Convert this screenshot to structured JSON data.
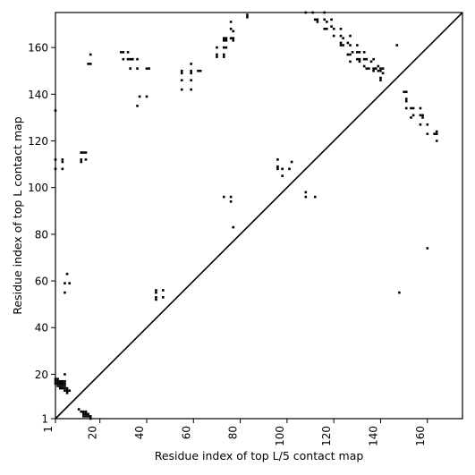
{
  "chart_data": {
    "type": "scatter",
    "title": "",
    "xlabel": "Residue index of top L/5 contact map",
    "ylabel": "Residue index of top L contact map",
    "xlim": [
      1,
      175
    ],
    "ylim": [
      1,
      175
    ],
    "x_ticks": [
      1,
      20,
      40,
      60,
      80,
      100,
      120,
      140,
      160
    ],
    "y_ticks": [
      1,
      20,
      40,
      60,
      80,
      100,
      120,
      140,
      160
    ],
    "x_tick_labels": [
      "1",
      "20",
      "40",
      "60",
      "80",
      "100",
      "120",
      "140",
      "160"
    ],
    "y_tick_labels": [
      "1",
      "20",
      "40",
      "60",
      "80",
      "100",
      "120",
      "140",
      "160"
    ],
    "tick_label_rotation_x": 270,
    "grid": false,
    "legend": "none",
    "diagonal_line": true,
    "marker": "square",
    "marker_color": "#000000",
    "series": [
      {
        "values": [
          [
            1,
            133
          ],
          [
            1,
            112
          ],
          [
            1,
            108
          ],
          [
            4,
            112
          ],
          [
            4,
            111
          ],
          [
            4,
            108
          ],
          [
            5,
            59
          ],
          [
            6,
            63
          ],
          [
            5,
            55
          ],
          [
            7,
            59
          ],
          [
            12,
            115
          ],
          [
            13,
            115
          ],
          [
            14,
            115
          ],
          [
            12,
            111
          ],
          [
            12,
            112
          ],
          [
            14,
            112
          ],
          [
            15,
            153
          ],
          [
            16,
            153
          ],
          [
            16,
            157
          ],
          [
            29,
            158
          ],
          [
            30,
            158
          ],
          [
            30,
            155
          ],
          [
            32,
            158
          ],
          [
            32,
            155
          ],
          [
            33,
            155
          ],
          [
            34,
            155
          ],
          [
            33,
            151
          ],
          [
            36,
            155
          ],
          [
            36,
            151
          ],
          [
            37,
            139
          ],
          [
            36,
            135
          ],
          [
            40,
            139
          ],
          [
            40,
            151
          ],
          [
            41,
            151
          ],
          [
            44,
            56
          ],
          [
            44,
            55
          ],
          [
            44,
            53
          ],
          [
            44,
            52
          ],
          [
            47,
            56
          ],
          [
            47,
            53
          ],
          [
            55,
            150
          ],
          [
            55,
            149
          ],
          [
            55,
            146
          ],
          [
            55,
            142
          ],
          [
            59,
            153
          ],
          [
            59,
            150
          ],
          [
            59,
            149
          ],
          [
            59,
            146
          ],
          [
            59,
            142
          ],
          [
            62,
            150
          ],
          [
            63,
            150
          ],
          [
            70,
            160
          ],
          [
            70,
            157
          ],
          [
            70,
            156
          ],
          [
            73,
            164
          ],
          [
            73,
            163
          ],
          [
            73,
            160
          ],
          [
            73,
            157
          ],
          [
            73,
            156
          ],
          [
            74,
            164
          ],
          [
            74,
            163
          ],
          [
            74,
            160
          ],
          [
            76,
            171
          ],
          [
            76,
            168
          ],
          [
            77,
            167
          ],
          [
            76,
            164
          ],
          [
            77,
            164
          ],
          [
            77,
            163
          ],
          [
            73,
            96
          ],
          [
            76,
            96
          ],
          [
            76,
            94
          ],
          [
            77,
            83
          ],
          [
            83,
            174
          ],
          [
            83,
            173
          ],
          [
            96,
            112
          ],
          [
            96,
            109
          ],
          [
            96,
            108
          ],
          [
            98,
            108
          ],
          [
            98,
            105
          ],
          [
            101,
            108
          ],
          [
            102,
            111
          ],
          [
            108,
            175
          ],
          [
            108,
            98
          ],
          [
            108,
            96
          ],
          [
            111,
            175
          ],
          [
            112,
            96
          ],
          [
            112,
            172
          ],
          [
            113,
            171
          ],
          [
            113,
            172
          ],
          [
            116,
            175
          ],
          [
            116,
            172
          ],
          [
            117,
            171
          ],
          [
            116,
            168
          ],
          [
            117,
            168
          ],
          [
            119,
            172
          ],
          [
            119,
            169
          ],
          [
            120,
            168
          ],
          [
            120,
            165
          ],
          [
            123,
            168
          ],
          [
            123,
            165
          ],
          [
            124,
            164
          ],
          [
            123,
            162
          ],
          [
            124,
            161
          ],
          [
            123,
            161
          ],
          [
            126,
            162
          ],
          [
            127,
            165
          ],
          [
            127,
            161
          ],
          [
            126,
            157
          ],
          [
            127,
            157
          ],
          [
            128,
            158
          ],
          [
            127,
            154
          ],
          [
            130,
            161
          ],
          [
            130,
            158
          ],
          [
            131,
            158
          ],
          [
            130,
            155
          ],
          [
            131,
            155
          ],
          [
            131,
            154
          ],
          [
            133,
            158
          ],
          [
            133,
            155
          ],
          [
            134,
            155
          ],
          [
            133,
            152
          ],
          [
            134,
            151
          ],
          [
            135,
            151
          ],
          [
            136,
            154
          ],
          [
            137,
            155
          ],
          [
            137,
            151
          ],
          [
            137,
            150
          ],
          [
            138,
            151
          ],
          [
            139,
            152
          ],
          [
            139,
            150
          ],
          [
            140,
            151
          ],
          [
            140,
            150
          ],
          [
            141,
            151
          ],
          [
            141,
            149
          ],
          [
            140,
            147
          ],
          [
            140,
            146
          ],
          [
            147,
            161
          ],
          [
            148,
            55
          ],
          [
            150,
            141
          ],
          [
            151,
            141
          ],
          [
            151,
            138
          ],
          [
            151,
            137
          ],
          [
            151,
            134
          ],
          [
            153,
            134
          ],
          [
            154,
            134
          ],
          [
            154,
            131
          ],
          [
            153,
            130
          ],
          [
            157,
            134
          ],
          [
            157,
            131
          ],
          [
            158,
            131
          ],
          [
            158,
            130
          ],
          [
            157,
            127
          ],
          [
            160,
            127
          ],
          [
            160,
            123
          ],
          [
            160,
            74
          ],
          [
            163,
            123
          ],
          [
            164,
            124
          ],
          [
            164,
            123
          ],
          [
            164,
            120
          ]
        ]
      },
      {
        "values": [
          [
            1,
            18
          ],
          [
            1,
            17
          ],
          [
            1,
            16
          ],
          [
            2,
            18
          ],
          [
            2,
            17
          ],
          [
            2,
            16
          ],
          [
            2,
            15
          ],
          [
            3,
            17
          ],
          [
            3,
            16
          ],
          [
            3,
            15
          ],
          [
            3,
            14
          ],
          [
            4,
            17
          ],
          [
            4,
            16
          ],
          [
            4,
            15
          ],
          [
            4,
            14
          ],
          [
            5,
            17
          ],
          [
            5,
            16
          ],
          [
            5,
            15
          ],
          [
            5,
            14
          ],
          [
            5,
            13
          ],
          [
            6,
            14
          ],
          [
            6,
            13
          ],
          [
            6,
            12
          ],
          [
            7,
            13
          ],
          [
            5,
            20
          ],
          [
            11,
            5
          ],
          [
            12,
            4
          ],
          [
            13,
            4
          ],
          [
            13,
            3
          ],
          [
            13,
            2
          ],
          [
            14,
            4
          ],
          [
            14,
            3
          ],
          [
            14,
            2
          ],
          [
            15,
            3
          ],
          [
            15,
            2
          ],
          [
            16,
            2
          ],
          [
            16,
            1
          ]
        ]
      }
    ]
  }
}
